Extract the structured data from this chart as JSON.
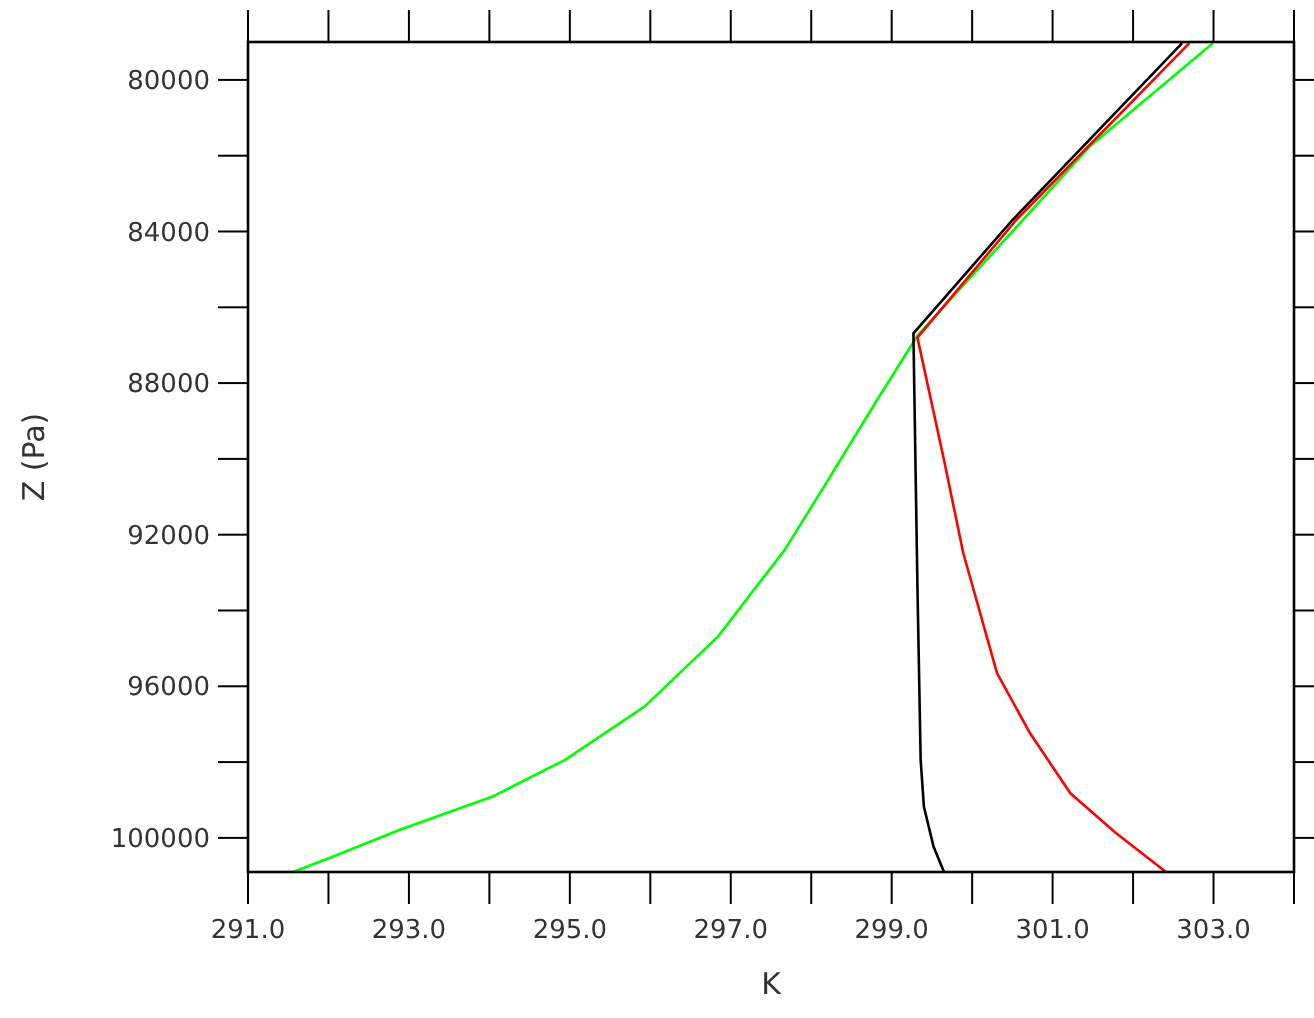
{
  "chart_data": {
    "type": "line",
    "xlabel": "K",
    "ylabel": "Z (Pa)",
    "xlim": [
      291,
      304
    ],
    "ylim": [
      100900,
      79000
    ],
    "xticks": [
      {
        "value": 291,
        "label": "291.0"
      },
      {
        "value": 292,
        "label": null
      },
      {
        "value": 293,
        "label": "293.0"
      },
      {
        "value": 294,
        "label": null
      },
      {
        "value": 295,
        "label": "295.0"
      },
      {
        "value": 296,
        "label": null
      },
      {
        "value": 297,
        "label": "297.0"
      },
      {
        "value": 298,
        "label": null
      },
      {
        "value": 299,
        "label": "299.0"
      },
      {
        "value": 300,
        "label": null
      },
      {
        "value": 301,
        "label": "301.0"
      },
      {
        "value": 302,
        "label": null
      },
      {
        "value": 303,
        "label": "303.0"
      },
      {
        "value": 304,
        "label": null
      }
    ],
    "yticks": [
      {
        "value": 80000,
        "label": "80000"
      },
      {
        "value": 82000,
        "label": null
      },
      {
        "value": 84000,
        "label": "84000"
      },
      {
        "value": 86000,
        "label": null
      },
      {
        "value": 88000,
        "label": "88000"
      },
      {
        "value": 90000,
        "label": null
      },
      {
        "value": 92000,
        "label": "92000"
      },
      {
        "value": 94000,
        "label": null
      },
      {
        "value": 96000,
        "label": "96000"
      },
      {
        "value": 98000,
        "label": null
      },
      {
        "value": 100000,
        "label": "100000"
      }
    ],
    "grid": false,
    "marker": "none",
    "line_style": "solid",
    "series": [
      {
        "color": "#00ff00",
        "x": [
          291.56,
          292.06,
          292.88,
          294.04,
          294.94,
          295.93,
          296.84,
          297.67,
          298.16,
          298.82,
          299.32,
          301.46,
          302.99
        ],
        "values": [
          100900,
          100490,
          99790,
          98910,
          97940,
          96530,
          94690,
          92400,
          90730,
          88440,
          86750,
          81760,
          79030
        ]
      },
      {
        "color": "#ff0000",
        "x": [
          302.7,
          300.55,
          299.32,
          299.65,
          299.89,
          300.31,
          300.72,
          301.22,
          301.79,
          302.41
        ],
        "values": [
          79030,
          83690,
          86800,
          90030,
          92490,
          95660,
          97240,
          98820,
          99880,
          100900
        ]
      },
      {
        "color": "#000000",
        "x": [
          302.61,
          300.5,
          299.27,
          299.32,
          299.36,
          299.4,
          299.52,
          299.65
        ],
        "values": [
          79030,
          83700,
          86690,
          93370,
          97940,
          99170,
          100230,
          100900
        ]
      }
    ]
  }
}
